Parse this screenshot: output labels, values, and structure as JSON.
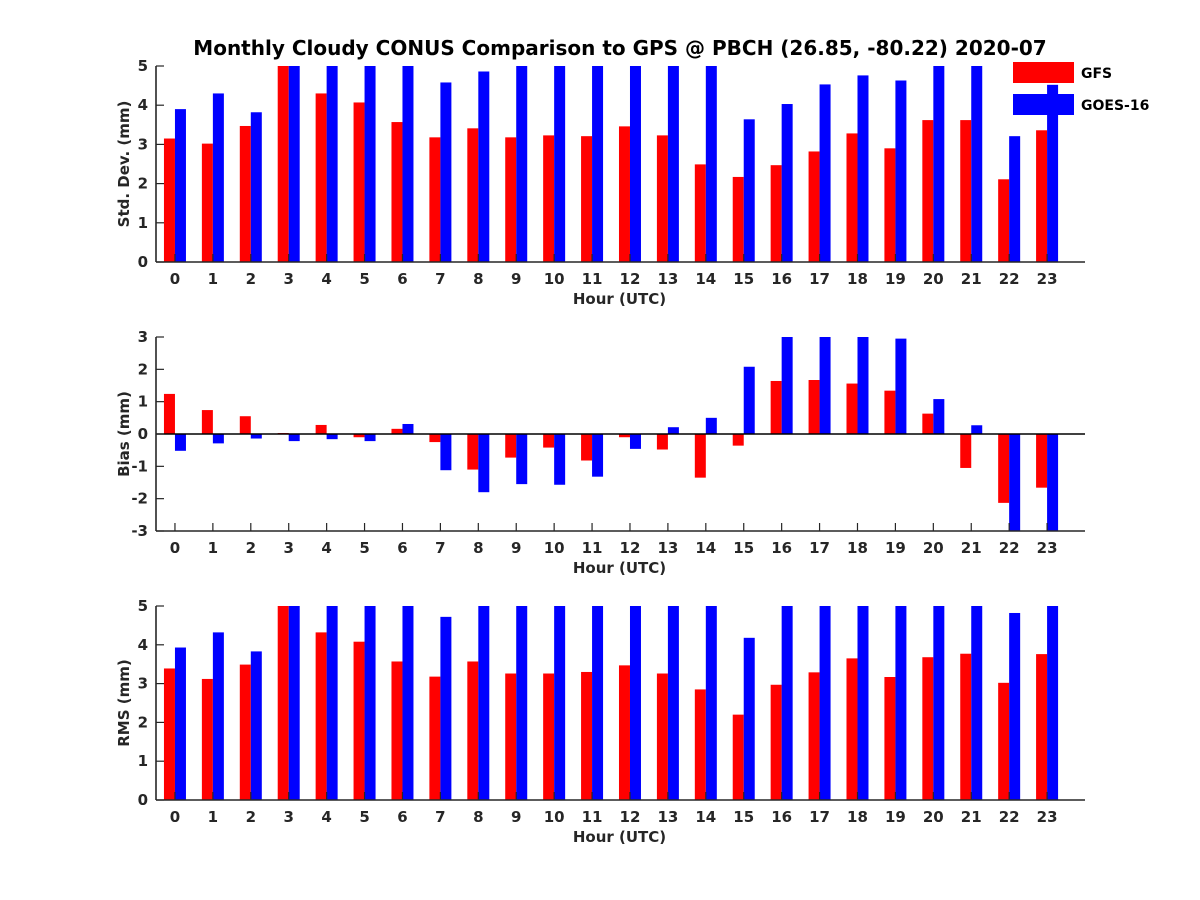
{
  "figure": {
    "title": "Monthly Cloudy CONUS Comparison to GPS @ PBCH (26.85, -80.22) 2020-07"
  },
  "legend": {
    "placement": "top-right, outside",
    "entries": [
      {
        "label": "GFS",
        "color": "#ff0000"
      },
      {
        "label": "GOES-16",
        "color": "#0000ff"
      }
    ]
  },
  "chart_data": [
    {
      "type": "bar",
      "xlabel": "Hour (UTC)",
      "ylabel": "Std. Dev. (mm)",
      "ylim": [
        0,
        5
      ],
      "yticks": [
        0,
        1,
        2,
        3,
        4,
        5
      ],
      "categories": [
        "0",
        "1",
        "2",
        "3",
        "4",
        "5",
        "6",
        "7",
        "8",
        "9",
        "10",
        "11",
        "12",
        "13",
        "14",
        "15",
        "16",
        "17",
        "18",
        "19",
        "20",
        "21",
        "22",
        "23"
      ],
      "series": [
        {
          "name": "GFS",
          "color": "#ff0000",
          "values": [
            3.15,
            3.02,
            3.47,
            5.0,
            4.3,
            4.07,
            3.57,
            3.18,
            3.41,
            3.18,
            3.23,
            3.21,
            3.46,
            3.23,
            2.49,
            2.17,
            2.47,
            2.82,
            3.28,
            2.9,
            3.62,
            3.62,
            2.11,
            3.36
          ]
        },
        {
          "name": "GOES-16",
          "color": "#0000ff",
          "values": [
            3.9,
            4.3,
            3.82,
            5.0,
            5.0,
            5.0,
            5.0,
            4.58,
            4.86,
            5.0,
            5.0,
            5.0,
            5.0,
            5.0,
            5.0,
            3.64,
            4.03,
            4.53,
            4.76,
            4.63,
            5.0,
            5.0,
            3.21,
            4.52
          ]
        }
      ]
    },
    {
      "type": "bar",
      "xlabel": "Hour (UTC)",
      "ylabel": "Bias (mm)",
      "ylim": [
        -3,
        3
      ],
      "yticks": [
        -3,
        -2,
        -1,
        0,
        1,
        2,
        3
      ],
      "zero_line": true,
      "categories": [
        "0",
        "1",
        "2",
        "3",
        "4",
        "5",
        "6",
        "7",
        "8",
        "9",
        "10",
        "11",
        "12",
        "13",
        "14",
        "15",
        "16",
        "17",
        "18",
        "19",
        "20",
        "21",
        "22",
        "23"
      ],
      "series": [
        {
          "name": "GFS",
          "color": "#ff0000",
          "values": [
            1.24,
            0.74,
            0.55,
            0.03,
            0.28,
            -0.1,
            0.16,
            -0.25,
            -1.1,
            -0.73,
            -0.42,
            -0.82,
            -0.1,
            -0.48,
            -1.35,
            -0.36,
            1.64,
            1.67,
            1.56,
            1.34,
            0.63,
            -1.05,
            -2.13,
            -1.66
          ]
        },
        {
          "name": "GOES-16",
          "color": "#0000ff",
          "values": [
            -0.52,
            -0.29,
            -0.14,
            -0.22,
            -0.16,
            -0.22,
            0.31,
            -1.12,
            -1.8,
            -1.55,
            -1.57,
            -1.32,
            -0.46,
            0.21,
            0.5,
            2.08,
            3.0,
            3.0,
            3.0,
            2.95,
            1.08,
            0.27,
            -3.0,
            -3.0
          ]
        }
      ]
    },
    {
      "type": "bar",
      "xlabel": "Hour (UTC)",
      "ylabel": "RMS (mm)",
      "ylim": [
        0,
        5
      ],
      "yticks": [
        0,
        1,
        2,
        3,
        4,
        5
      ],
      "categories": [
        "0",
        "1",
        "2",
        "3",
        "4",
        "5",
        "6",
        "7",
        "8",
        "9",
        "10",
        "11",
        "12",
        "13",
        "14",
        "15",
        "16",
        "17",
        "18",
        "19",
        "20",
        "21",
        "22",
        "23"
      ],
      "series": [
        {
          "name": "GFS",
          "color": "#ff0000",
          "values": [
            3.39,
            3.12,
            3.49,
            5.0,
            4.32,
            4.08,
            3.57,
            3.18,
            3.57,
            3.26,
            3.26,
            3.3,
            3.47,
            3.26,
            2.85,
            2.2,
            2.97,
            3.29,
            3.65,
            3.17,
            3.68,
            3.77,
            3.02,
            3.76
          ]
        },
        {
          "name": "GOES-16",
          "color": "#0000ff",
          "values": [
            3.93,
            4.32,
            3.83,
            5.0,
            5.0,
            5.0,
            5.0,
            4.72,
            5.0,
            5.0,
            5.0,
            5.0,
            5.0,
            5.0,
            5.0,
            4.18,
            5.0,
            5.0,
            5.0,
            5.0,
            5.0,
            5.0,
            4.82,
            5.0
          ]
        }
      ]
    }
  ]
}
